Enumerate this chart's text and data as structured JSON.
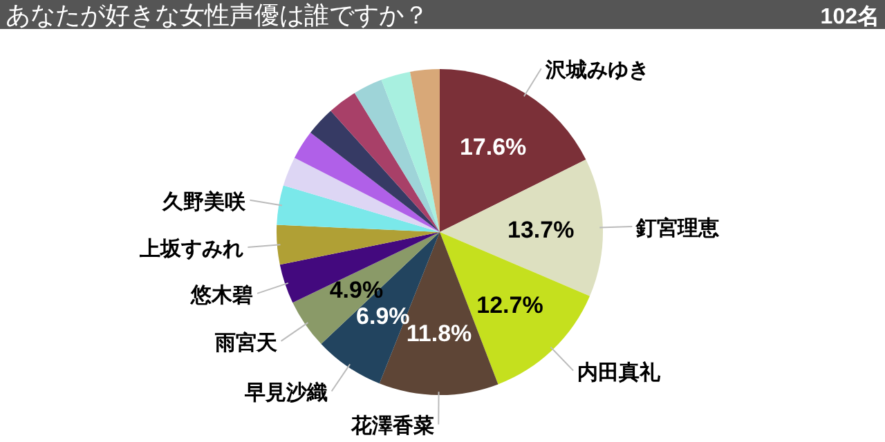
{
  "chart_data": {
    "type": "pie",
    "title": "あなたが好きな女性声優は誰ですか？",
    "annotations": [
      "102名"
    ],
    "categories": [
      "沢城みゆき",
      "釘宮理恵",
      "内田真礼",
      "花澤香菜",
      "早見沙織",
      "雨宮天",
      "悠木碧",
      "上坂すみれ",
      "久野美咲",
      null,
      null,
      null,
      null,
      null,
      null,
      null
    ],
    "values": [
      17.6,
      13.7,
      12.7,
      11.8,
      6.9,
      4.9,
      3.9,
      3.9,
      3.9,
      2.9,
      2.9,
      2.9,
      2.9,
      2.9,
      2.9,
      2.9
    ],
    "value_labels": [
      "17.6%",
      "13.7%",
      "12.7%",
      "11.8%",
      "6.9%",
      "4.9%",
      null,
      null,
      null,
      null,
      null,
      null,
      null,
      null,
      null,
      null
    ],
    "colors": [
      "#7b3038",
      "#dde0c0",
      "#c5e01e",
      "#5e4536",
      "#22445f",
      "#8a9a68",
      "#43097e",
      "#b0a035",
      "#7ae8ea",
      "#ddd6f4",
      "#b060e8",
      "#363a64",
      "#a84068",
      "#9ed4d8",
      "#a8f0e0",
      "#d8a878"
    ]
  }
}
